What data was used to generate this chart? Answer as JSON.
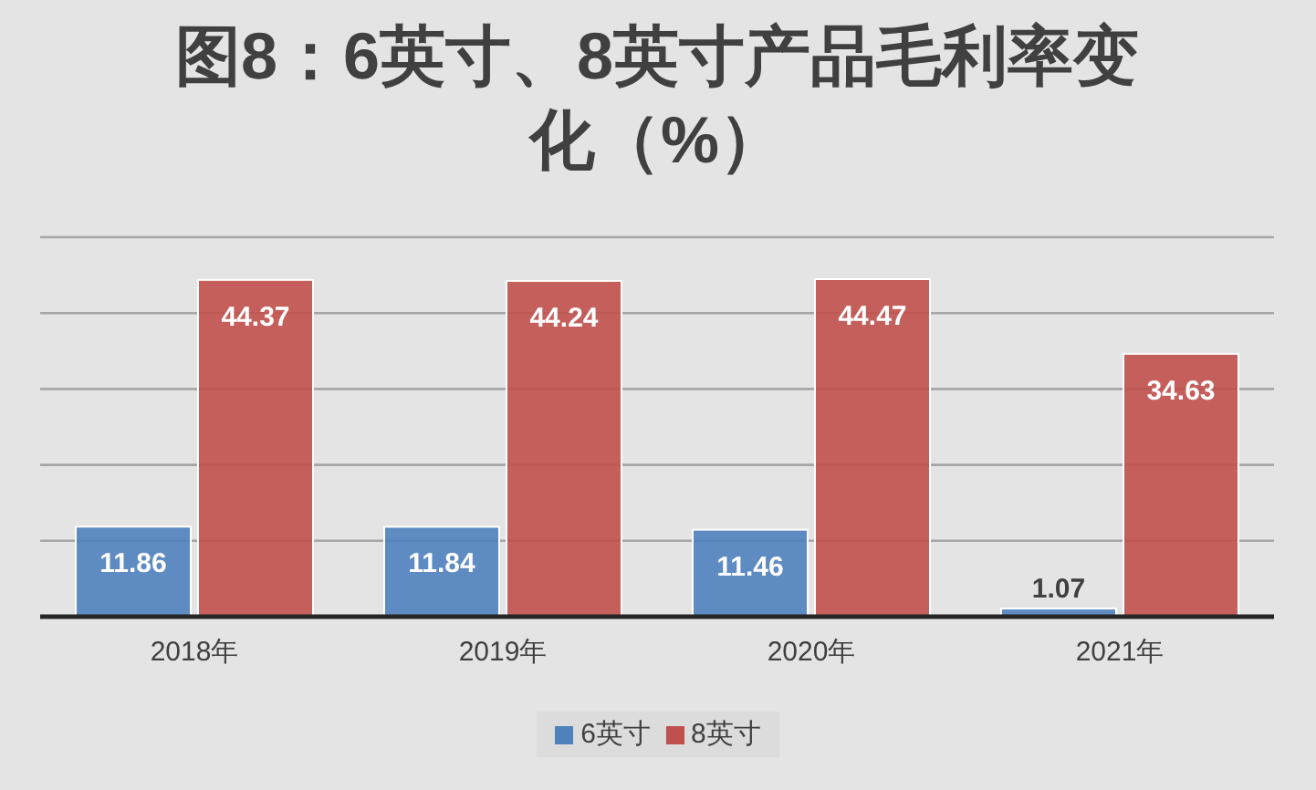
{
  "chart_data": {
    "type": "bar",
    "title": "图8：6英寸、8英寸产品毛利率变化（%）",
    "categories": [
      "2018年",
      "2019年",
      "2020年",
      "2021年"
    ],
    "series": [
      {
        "name": "6英寸",
        "color": "#4f81bd",
        "values": [
          11.86,
          11.84,
          11.46,
          1.07
        ]
      },
      {
        "name": "8英寸",
        "color": "#c0504d",
        "values": [
          44.37,
          44.24,
          44.47,
          34.63
        ]
      }
    ],
    "ylim": [
      0,
      50
    ],
    "yticks": [
      {
        "value": 0,
        "label": null
      },
      {
        "value": 10,
        "label": null
      },
      {
        "value": 20,
        "label": null
      },
      {
        "value": 30,
        "label": null
      },
      {
        "value": 40,
        "label": null
      },
      {
        "value": 50,
        "label": null
      }
    ],
    "tick_labels": "x",
    "grid": "y",
    "data_labels": true,
    "legend": "bottom"
  }
}
